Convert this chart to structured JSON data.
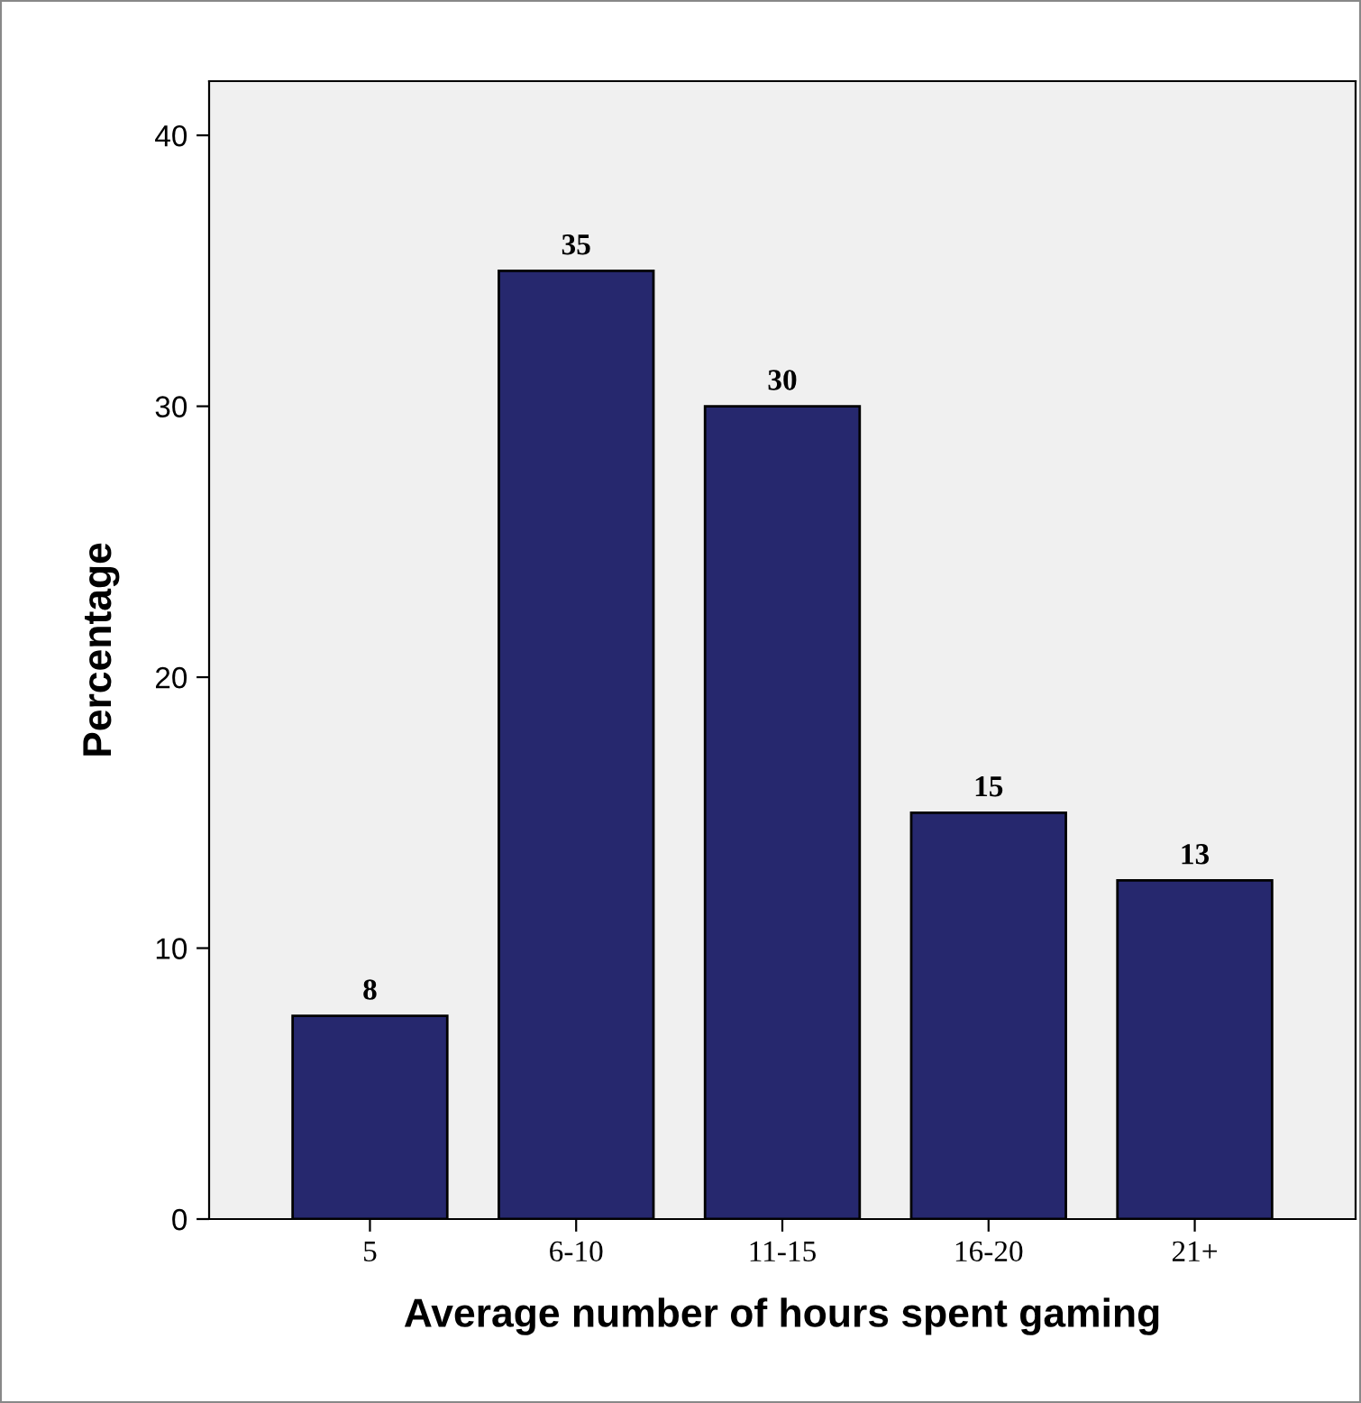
{
  "chart_data": {
    "type": "bar",
    "xlabel": "Average number of hours spent gaming",
    "ylabel": "Percentage",
    "categories": [
      "5",
      "6-10",
      "11-15",
      "16-20",
      "21+"
    ],
    "values": [
      7.5,
      35,
      30,
      15,
      12.5
    ],
    "value_labels": [
      "8",
      "35",
      "30",
      "15",
      "13"
    ],
    "color": "#26286e",
    "ylim": [
      0,
      42
    ],
    "yticks": [
      0,
      10,
      20,
      30,
      40
    ],
    "grid": false
  }
}
